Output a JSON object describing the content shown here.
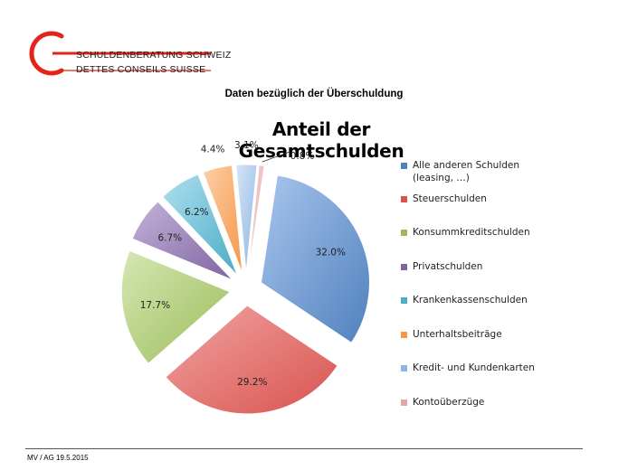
{
  "header": {
    "org_line1": "SCHULDENBERATUNG SCHWEIZ",
    "org_line2": "DETTES CONSEILS SUISSE",
    "subtitle": "Daten bezüglich der Überschuldung"
  },
  "footer": {
    "text": "MV / AG 19.5.2015"
  },
  "colors": {
    "logo_red": "#e3241b"
  },
  "chart_data": {
    "type": "pie",
    "title": "Anteil der Gesamtschulden",
    "legend_position": "right",
    "slices": [
      {
        "label": "Alle anderen Schulden (leasing, …)",
        "value": 32.0,
        "display": "32.0%",
        "color": "#4f81bd",
        "light": "#a9c5ee"
      },
      {
        "label": "Steuerschulden",
        "value": 29.2,
        "display": "29.2%",
        "color": "#d9534f",
        "light": "#f0a4a2"
      },
      {
        "label": "Konsummkreditschulden",
        "value": 17.7,
        "display": "17.7%",
        "color": "#9bbb59",
        "light": "#d6e8b4"
      },
      {
        "label": "Privatschulden",
        "value": 6.7,
        "display": "6.7%",
        "color": "#8064a2",
        "light": "#c3b3d8"
      },
      {
        "label": "Krankenkassenschulden",
        "value": 6.2,
        "display": "6.2%",
        "color": "#4bacc6",
        "light": "#aee0ee"
      },
      {
        "label": "Unterhaltsbeiträge",
        "value": 4.4,
        "display": "4.4%",
        "color": "#f79646",
        "light": "#fbd0a8"
      },
      {
        "label": "Kredit- und Kundenkarten",
        "value": 3.1,
        "display": "3.1%",
        "color": "#8db4e2",
        "light": "#d7e6f7"
      },
      {
        "label": "Kontoüberzüge",
        "value": 0.8,
        "display": "0.8%",
        "color": "#e6a6a6",
        "light": "#f7d9d9"
      }
    ]
  }
}
